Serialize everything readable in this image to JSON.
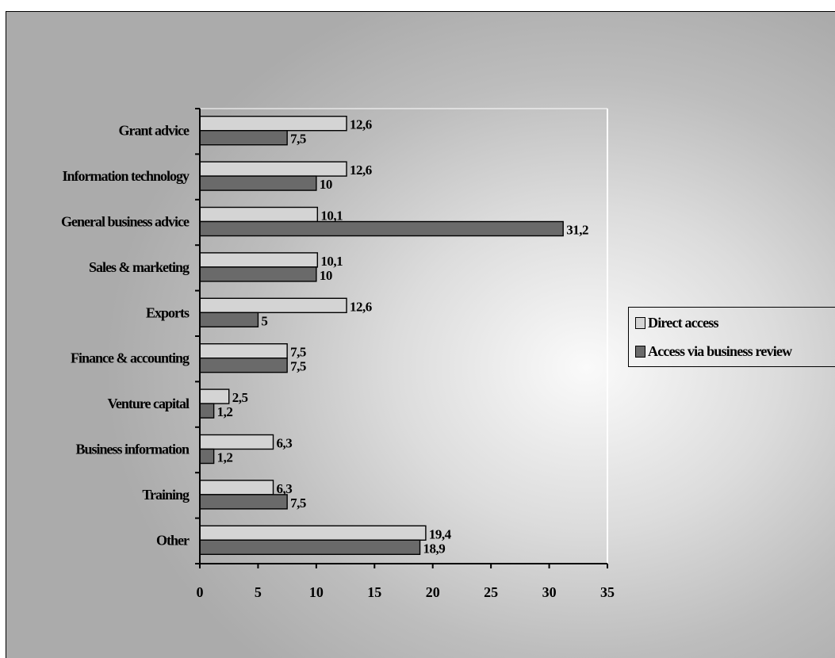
{
  "chart_data": {
    "type": "bar",
    "orientation": "horizontal",
    "categories": [
      "Grant advice",
      "Information technology",
      "General business advice",
      "Sales & marketing",
      "Exports",
      "Finance & accounting",
      "Venture capital",
      "Business information",
      "Training",
      "Other"
    ],
    "series": [
      {
        "name": "Direct access",
        "values": [
          12.6,
          12.6,
          10.1,
          10.1,
          12.6,
          7.5,
          2.5,
          6.3,
          6.3,
          19.4
        ],
        "labels": [
          "12,6",
          "12,6",
          "10,1",
          "10,1",
          "12,6",
          "7,5",
          "2,5",
          "6,3",
          "6,3",
          "19,4"
        ],
        "color": "#d4d4d4"
      },
      {
        "name": "Access via business review",
        "values": [
          7.5,
          10,
          31.2,
          10,
          5,
          7.5,
          1.2,
          1.2,
          7.5,
          18.9
        ],
        "labels": [
          "7,5",
          "10",
          "31,2",
          "10",
          "5",
          "7,5",
          "1,2",
          "1,2",
          "7,5",
          "18,9"
        ],
        "color": "#6a6a6a"
      }
    ],
    "x_ticks": [
      "0",
      "5",
      "10",
      "15",
      "20",
      "25",
      "30",
      "35"
    ],
    "xlim": [
      0,
      35
    ],
    "title": "",
    "xlabel": "",
    "ylabel": "",
    "grid": false,
    "legend_position": "right"
  }
}
